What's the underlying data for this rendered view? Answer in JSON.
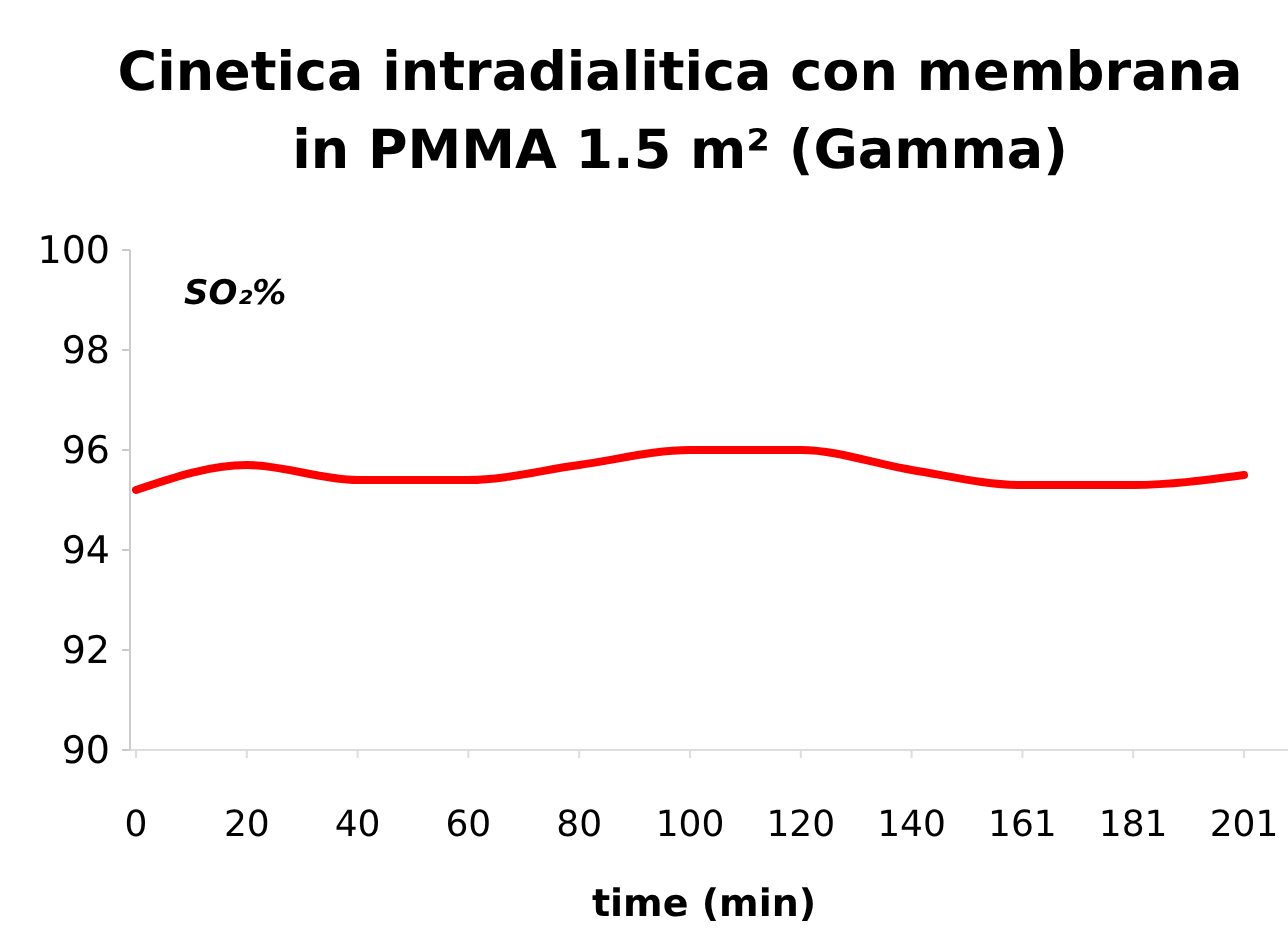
{
  "chart_data": {
    "type": "line",
    "title": "Cinetica intradialitica con membrana",
    "subtitle": "in PMMA 1.5 m² (Gamma)",
    "xlabel": "time (min)",
    "annotations": [
      "SO₂%"
    ],
    "categories": [
      "0",
      "20",
      "40",
      "60",
      "80",
      "100",
      "120",
      "140",
      "161",
      "181",
      "201"
    ],
    "series": [
      {
        "color": "#ff0000",
        "values": [
          95.2,
          95.7,
          95.4,
          95.4,
          95.7,
          96.0,
          96.0,
          95.6,
          95.3,
          95.3,
          95.5
        ]
      }
    ],
    "ylim": [
      90,
      100
    ],
    "yticks": [
      90,
      92,
      94,
      96,
      98,
      100
    ],
    "marker": "none",
    "line_style": "solid",
    "grid": false
  }
}
